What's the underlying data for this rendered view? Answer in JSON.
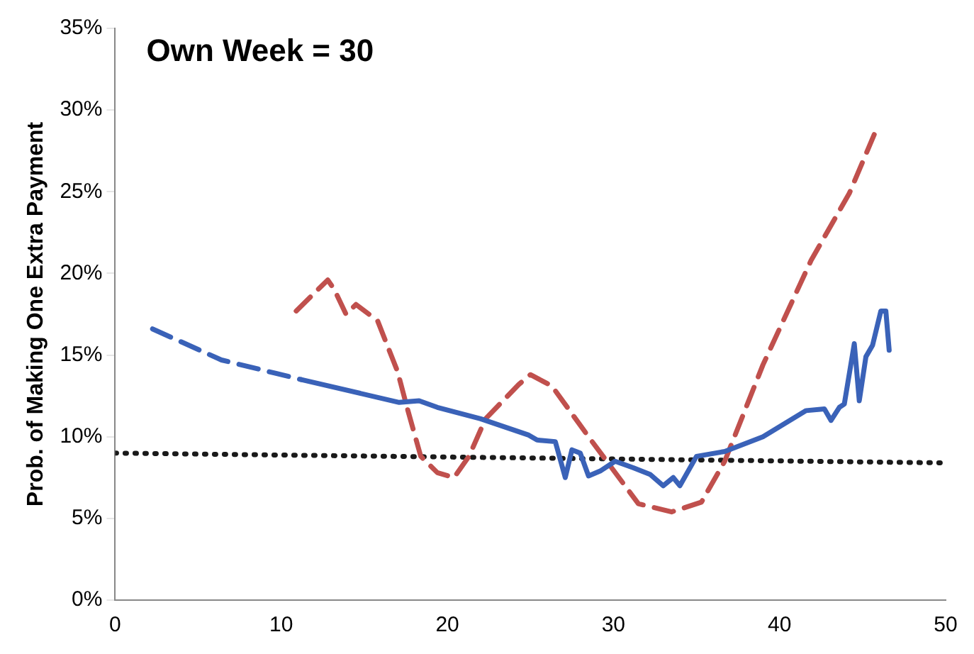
{
  "chart_data": {
    "type": "line",
    "title": "Own Week = 30",
    "ylabel": "Prob. of Making One Extra Payment",
    "xlim": [
      0,
      50
    ],
    "xticks": [
      0,
      10,
      20,
      30,
      40,
      50
    ],
    "ylim": [
      0,
      35
    ],
    "yticks": [
      {
        "value": 0,
        "label": "0%"
      },
      {
        "value": 5,
        "label": "5%"
      },
      {
        "value": 10,
        "label": "10%"
      },
      {
        "value": 15,
        "label": "15%"
      },
      {
        "value": 20,
        "label": "20%"
      },
      {
        "value": 25,
        "label": "25%"
      },
      {
        "value": 30,
        "label": "30%"
      },
      {
        "value": 35,
        "label": "35%"
      }
    ],
    "grid": false,
    "legend": false,
    "marker": "none",
    "series": [
      {
        "color": "#3a62b8",
        "line_style": "dashed",
        "x": [
          2.25,
          6.4,
          9.6,
          11.2
        ],
        "values": [
          16.6,
          14.7,
          13.9,
          13.5
        ]
      },
      {
        "color": "#3a62b8",
        "line_style": "solid",
        "x": [
          11.2,
          17.1,
          18.3,
          19.4,
          22.0,
          24.9,
          25.4,
          26.5,
          27.1,
          27.5,
          28.0,
          28.5,
          29.2,
          30.1,
          31.2,
          32.2,
          33.0,
          33.6,
          34.0,
          35.0,
          36.7,
          39.0,
          41.6,
          42.7,
          43.1,
          43.6,
          43.9,
          44.5,
          44.8,
          45.2,
          45.6,
          46.1,
          46.4,
          46.6
        ],
        "values": [
          13.5,
          12.1,
          12.2,
          11.8,
          11.1,
          10.1,
          9.8,
          9.7,
          7.5,
          9.2,
          9.0,
          7.6,
          7.9,
          8.5,
          8.1,
          7.7,
          7.0,
          7.5,
          7.0,
          8.8,
          9.1,
          10.0,
          11.6,
          11.7,
          11.0,
          11.8,
          12.0,
          15.7,
          12.2,
          14.9,
          15.6,
          17.7,
          17.7,
          15.3
        ]
      },
      {
        "color": "#c0504d",
        "line_style": "dashed",
        "x": [
          10.9,
          12.8,
          13.2,
          13.9,
          14.5,
          15.8,
          17.0,
          17.6,
          18.4,
          19.4,
          20.4,
          21.3,
          22.3,
          24.3,
          25.0,
          26.3,
          28.5,
          31.5,
          33.5,
          35.3,
          36.7,
          39.0,
          41.9,
          44.2,
          45.7
        ],
        "values": [
          17.7,
          19.6,
          19.0,
          17.5,
          18.1,
          17.1,
          14.0,
          11.7,
          8.8,
          7.8,
          7.5,
          8.8,
          11.1,
          13.2,
          13.8,
          13.1,
          10.0,
          5.9,
          5.4,
          6.0,
          8.5,
          14.4,
          20.8,
          24.9,
          28.5
        ]
      },
      {
        "color": "#1a1a1a",
        "line_style": "dotted",
        "x": [
          0,
          50
        ],
        "values": [
          9.0,
          8.4
        ]
      }
    ]
  }
}
